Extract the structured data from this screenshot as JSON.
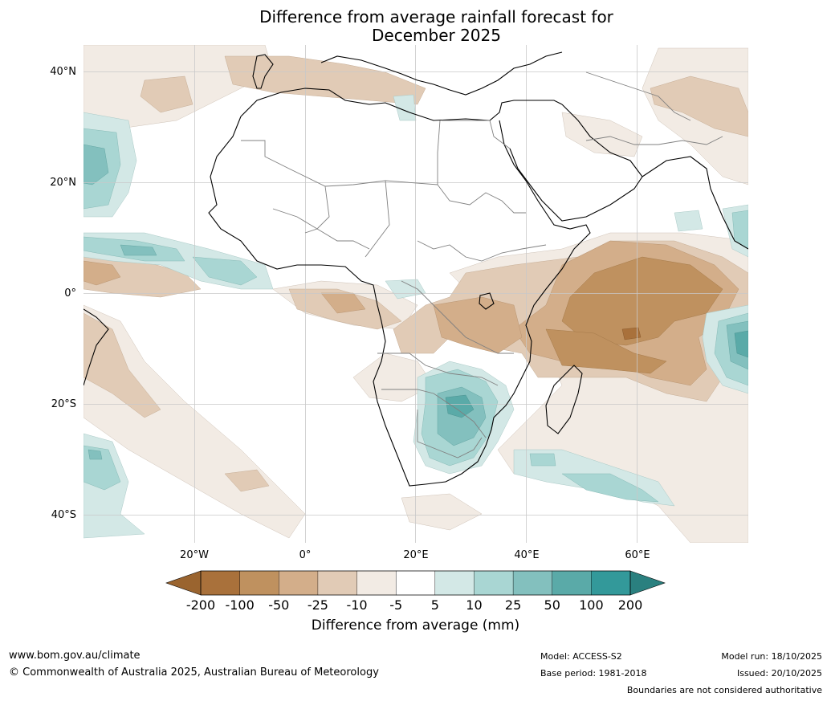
{
  "title": {
    "line1": "Difference from average rainfall forecast for",
    "line2": "December 2025"
  },
  "axes": {
    "lat_labels": [
      "40°N",
      "20°N",
      "0°",
      "20°S",
      "40°S"
    ],
    "lon_labels": [
      "20°W",
      "0°",
      "20°E",
      "40°E",
      "60°E"
    ],
    "lat_values": [
      40,
      20,
      0,
      -20,
      -40
    ],
    "lon_values": [
      -20,
      0,
      20,
      40,
      60
    ],
    "lat_range": [
      -45,
      45
    ],
    "lon_range": [
      -40,
      80
    ]
  },
  "colorbar": {
    "label": "Difference from average (mm)",
    "ticks": [
      "-200",
      "-100",
      "-50",
      "-25",
      "-10",
      "-5",
      "5",
      "10",
      "25",
      "50",
      "100",
      "200"
    ],
    "colors": [
      "#a9713b",
      "#bf915f",
      "#d3ae8a",
      "#e1cbb6",
      "#f2ebe4",
      "#ffffff",
      "#d3e8e6",
      "#a9d6d3",
      "#83c0be",
      "#5aaaa8",
      "#33999a"
    ],
    "under_color": "#9a642f",
    "over_color": "#2a807f"
  },
  "footer": {
    "website": "www.bom.gov.au/climate",
    "copyright": "© Commonwealth of Australia 2025, Australian Bureau of Meteorology",
    "model": "Model: ACCESS-S2",
    "base_period": "Base period: 1981-2018",
    "model_run": "Model run: 18/10/2025",
    "issued": "Issued: 20/10/2025",
    "disclaimer": "Boundaries are not considered authoritative"
  }
}
